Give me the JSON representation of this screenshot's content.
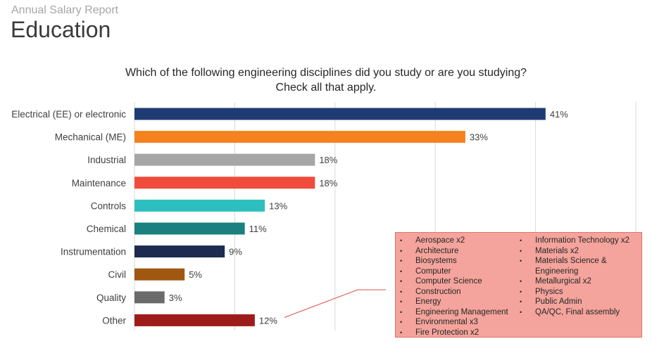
{
  "header": {
    "report_label": "Annual Salary Report",
    "section_title": "Education"
  },
  "chart_data": {
    "type": "bar",
    "orientation": "horizontal",
    "title_lines": [
      "Which of the following engineering disciplines did you study or are you studying?",
      "Check all that apply."
    ],
    "categories": [
      "Electrical (EE) or electronic",
      "Mechanical (ME)",
      "Industrial",
      "Maintenance",
      "Controls",
      "Chemical",
      "Instrumentation",
      "Civil",
      "Quality",
      "Other"
    ],
    "values": [
      41,
      33,
      18,
      18,
      13,
      11,
      9,
      5,
      3,
      12
    ],
    "value_labels": [
      "41%",
      "33%",
      "18%",
      "18%",
      "13%",
      "11%",
      "9%",
      "5%",
      "3%",
      "12%"
    ],
    "colors": [
      "#1f3b73",
      "#f5821f",
      "#a6a6a6",
      "#ef4c3c",
      "#2dbfbf",
      "#1a8080",
      "#1c2b4f",
      "#a0570f",
      "#6b6b6b",
      "#9e1b1b"
    ],
    "xlim": [
      0,
      50
    ],
    "vertical_gridlines": true,
    "legend": "none"
  },
  "other_note": {
    "column1": [
      "Aerospace x2",
      "Architecture",
      "Biosystems",
      "Computer",
      "Computer Science",
      "Construction",
      "Energy",
      "Engineering Management",
      "Environmental x3",
      "Fire Protection x2"
    ],
    "column2": [
      "Information Technology x2",
      "Materials x2",
      "Materials Science & Engineering",
      "Metallurgical x2",
      "Physics",
      "Public Admin",
      "QA/QC, Final assembly"
    ]
  }
}
